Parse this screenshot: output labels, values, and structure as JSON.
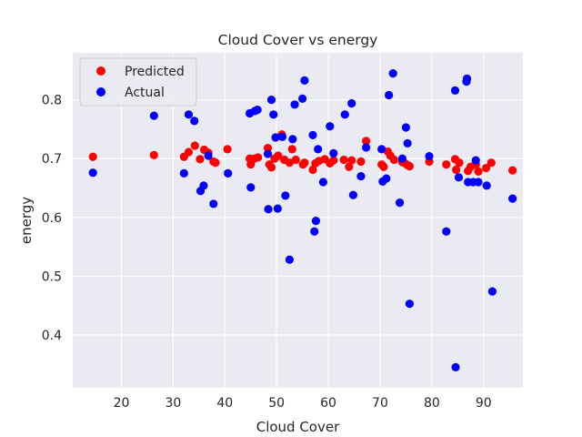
{
  "chart_data": {
    "type": "scatter",
    "title": "Cloud Cover vs energy",
    "xlabel": "Cloud Cover",
    "ylabel": "energy",
    "xlim": [
      10.6,
      97.6
    ],
    "ylim": [
      0.31,
      0.88
    ],
    "xticks": [
      20,
      30,
      40,
      50,
      60,
      70,
      80,
      90
    ],
    "yticks": [
      0.4,
      0.5,
      0.6,
      0.7,
      0.8
    ],
    "grid": true,
    "legend_position": "top-left",
    "series": [
      {
        "name": "Predicted",
        "color": "#ff0000",
        "points": [
          [
            14.5,
            0.703
          ],
          [
            26.3,
            0.706
          ],
          [
            32.1,
            0.703
          ],
          [
            33.0,
            0.711
          ],
          [
            34.2,
            0.722
          ],
          [
            35.2,
            0.699
          ],
          [
            36.0,
            0.715
          ],
          [
            36.8,
            0.71
          ],
          [
            37.8,
            0.695
          ],
          [
            38.2,
            0.693
          ],
          [
            40.5,
            0.716
          ],
          [
            44.8,
            0.7
          ],
          [
            45.0,
            0.69
          ],
          [
            45.7,
            0.7
          ],
          [
            46.4,
            0.702
          ],
          [
            48.3,
            0.718
          ],
          [
            48.6,
            0.69
          ],
          [
            49.0,
            0.685
          ],
          [
            49.6,
            0.7
          ],
          [
            50.3,
            0.705
          ],
          [
            51.0,
            0.741
          ],
          [
            51.5,
            0.698
          ],
          [
            52.5,
            0.693
          ],
          [
            53.0,
            0.716
          ],
          [
            53.7,
            0.698
          ],
          [
            55.1,
            0.69
          ],
          [
            55.4,
            0.693
          ],
          [
            57.0,
            0.681
          ],
          [
            57.5,
            0.692
          ],
          [
            58.2,
            0.696
          ],
          [
            59.3,
            0.699
          ],
          [
            60.3,
            0.692
          ],
          [
            61.0,
            0.697
          ],
          [
            63.0,
            0.698
          ],
          [
            64.0,
            0.686
          ],
          [
            64.5,
            0.697
          ],
          [
            66.3,
            0.695
          ],
          [
            67.3,
            0.73
          ],
          [
            70.3,
            0.69
          ],
          [
            70.7,
            0.686
          ],
          [
            71.5,
            0.712
          ],
          [
            72.0,
            0.705
          ],
          [
            72.7,
            0.698
          ],
          [
            74.3,
            0.694
          ],
          [
            74.8,
            0.692
          ],
          [
            75.3,
            0.689
          ],
          [
            75.7,
            0.687
          ],
          [
            79.5,
            0.695
          ],
          [
            82.8,
            0.69
          ],
          [
            84.5,
            0.699
          ],
          [
            84.7,
            0.681
          ],
          [
            85.3,
            0.693
          ],
          [
            87.0,
            0.679
          ],
          [
            87.5,
            0.686
          ],
          [
            88.5,
            0.69
          ],
          [
            89.0,
            0.678
          ],
          [
            90.5,
            0.684
          ],
          [
            91.5,
            0.693
          ],
          [
            95.6,
            0.68
          ]
        ]
      },
      {
        "name": "Actual",
        "color": "#0000ff",
        "points": [
          [
            14.5,
            0.676
          ],
          [
            26.3,
            0.773
          ],
          [
            32.1,
            0.675
          ],
          [
            33.0,
            0.775
          ],
          [
            34.1,
            0.764
          ],
          [
            35.3,
            0.645
          ],
          [
            35.9,
            0.654
          ],
          [
            36.8,
            0.705
          ],
          [
            37.8,
            0.623
          ],
          [
            40.6,
            0.675
          ],
          [
            44.8,
            0.777
          ],
          [
            45.0,
            0.651
          ],
          [
            45.8,
            0.781
          ],
          [
            46.3,
            0.783
          ],
          [
            48.3,
            0.708
          ],
          [
            48.4,
            0.614
          ],
          [
            49.0,
            0.8
          ],
          [
            49.4,
            0.775
          ],
          [
            49.8,
            0.736
          ],
          [
            50.2,
            0.615
          ],
          [
            51.1,
            0.737
          ],
          [
            51.7,
            0.637
          ],
          [
            52.5,
            0.528
          ],
          [
            53.1,
            0.733
          ],
          [
            53.5,
            0.792
          ],
          [
            55.0,
            0.802
          ],
          [
            55.4,
            0.833
          ],
          [
            57.0,
            0.74
          ],
          [
            57.3,
            0.576
          ],
          [
            57.6,
            0.594
          ],
          [
            58.0,
            0.716
          ],
          [
            59.0,
            0.66
          ],
          [
            60.3,
            0.755
          ],
          [
            61.0,
            0.709
          ],
          [
            63.2,
            0.775
          ],
          [
            64.5,
            0.794
          ],
          [
            64.8,
            0.638
          ],
          [
            66.3,
            0.67
          ],
          [
            67.3,
            0.719
          ],
          [
            70.3,
            0.716
          ],
          [
            70.5,
            0.661
          ],
          [
            71.2,
            0.666
          ],
          [
            71.7,
            0.808
          ],
          [
            72.5,
            0.845
          ],
          [
            73.8,
            0.625
          ],
          [
            74.3,
            0.7
          ],
          [
            75.0,
            0.753
          ],
          [
            75.3,
            0.726
          ],
          [
            75.7,
            0.453
          ],
          [
            79.5,
            0.704
          ],
          [
            82.8,
            0.576
          ],
          [
            84.5,
            0.816
          ],
          [
            84.6,
            0.345
          ],
          [
            85.2,
            0.668
          ],
          [
            86.7,
            0.831
          ],
          [
            86.8,
            0.836
          ],
          [
            87.0,
            0.66
          ],
          [
            88.0,
            0.66
          ],
          [
            88.5,
            0.697
          ],
          [
            89.0,
            0.66
          ],
          [
            90.6,
            0.654
          ],
          [
            91.7,
            0.474
          ],
          [
            95.6,
            0.632
          ]
        ]
      }
    ]
  }
}
